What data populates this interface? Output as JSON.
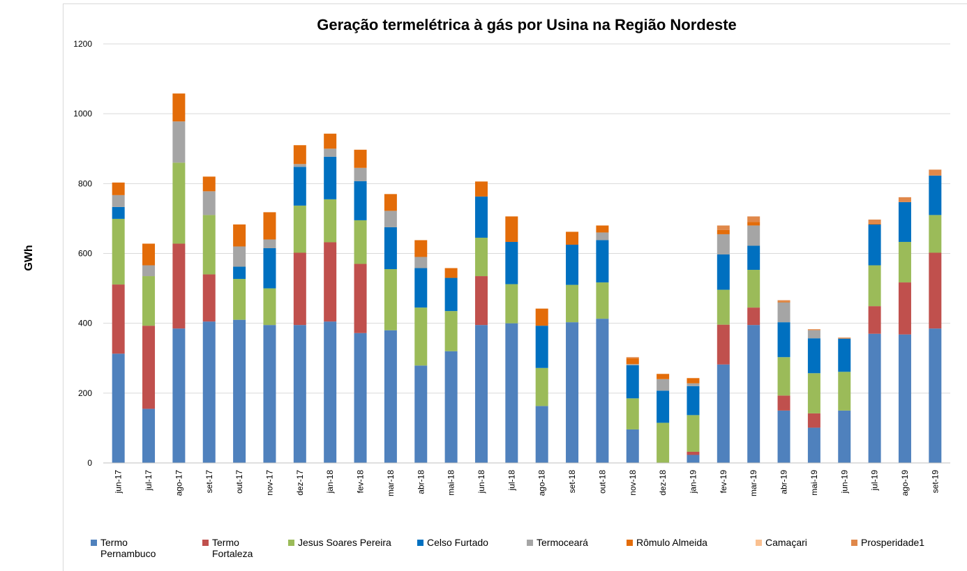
{
  "chart_data": {
    "type": "stacked-bar",
    "title": "Geração termelétrica à gás por Usina na Região Nordeste",
    "y_label": "GWh",
    "categories": [
      "jun-17",
      "jul-17",
      "ago-17",
      "set-17",
      "out-17",
      "nov-17",
      "dez-17",
      "jan-18",
      "fev-18",
      "mar-18",
      "abr-18",
      "mai-18",
      "jun-18",
      "jul-18",
      "ago-18",
      "set-18",
      "out-18",
      "nov-18",
      "dez-18",
      "jan-19",
      "fev-19",
      "mar-19",
      "abr-19",
      "mai-19",
      "jun-19",
      "jul-19",
      "ago-19",
      "set-19"
    ],
    "series": [
      {
        "name": "Termo Pernambuco",
        "color": "#4f81bd",
        "values": [
          313,
          155,
          385,
          405,
          410,
          395,
          395,
          405,
          372,
          380,
          279,
          320,
          395,
          400,
          163,
          403,
          413,
          96,
          0,
          23,
          282,
          395,
          150,
          101,
          150,
          370,
          368,
          385
        ]
      },
      {
        "name": "Termo Fortaleza",
        "color": "#c0504d",
        "values": [
          198,
          238,
          243,
          135,
          0,
          0,
          207,
          227,
          198,
          0,
          0,
          0,
          140,
          0,
          0,
          0,
          0,
          0,
          0,
          9,
          114,
          50,
          43,
          41,
          0,
          79,
          149,
          217
        ]
      },
      {
        "name": "Jesus Soares Pereira",
        "color": "#9bbb59",
        "values": [
          188,
          142,
          232,
          170,
          117,
          105,
          135,
          123,
          125,
          175,
          166,
          115,
          110,
          112,
          109,
          107,
          104,
          89,
          115,
          105,
          100,
          108,
          110,
          115,
          111,
          117,
          116,
          108
        ]
      },
      {
        "name": "Celso Furtado",
        "color": "#0070c0",
        "values": [
          34,
          0,
          0,
          0,
          35,
          115,
          111,
          122,
          112,
          120,
          113,
          95,
          118,
          121,
          121,
          115,
          121,
          95,
          92,
          83,
          101,
          69,
          100,
          100,
          95,
          117,
          114,
          113
        ]
      },
      {
        "name": "Termoceará",
        "color": "#a5a5a5",
        "values": [
          34,
          31,
          118,
          68,
          58,
          25,
          8,
          23,
          38,
          47,
          32,
          0,
          0,
          0,
          0,
          0,
          22,
          3,
          33,
          8,
          58,
          58,
          57,
          23,
          0,
          0,
          0,
          0
        ]
      },
      {
        "name": "Rômulo Almeida",
        "color": "#e36c09",
        "values": [
          36,
          62,
          80,
          42,
          63,
          78,
          54,
          43,
          52,
          48,
          48,
          28,
          43,
          73,
          49,
          37,
          20,
          17,
          15,
          15,
          12,
          10,
          2,
          0,
          0,
          2,
          0,
          0
        ]
      },
      {
        "name": "Camaçari",
        "color": "#fac090",
        "values": [
          0,
          0,
          0,
          0,
          0,
          0,
          0,
          0,
          0,
          0,
          0,
          0,
          0,
          0,
          0,
          0,
          0,
          0,
          0,
          0,
          0,
          0,
          0,
          0,
          0,
          0,
          0,
          0
        ]
      },
      {
        "name": "Prosperidade1",
        "color": "#e0884a",
        "values": [
          0,
          0,
          0,
          0,
          0,
          0,
          0,
          0,
          0,
          0,
          0,
          0,
          0,
          0,
          0,
          0,
          0,
          3,
          0,
          0,
          13,
          16,
          4,
          3,
          3,
          12,
          14,
          17
        ]
      }
    ],
    "ylim": [
      0,
      1200
    ],
    "yticks": [
      0,
      200,
      400,
      600,
      800,
      1000,
      1200
    ],
    "grid": true
  }
}
